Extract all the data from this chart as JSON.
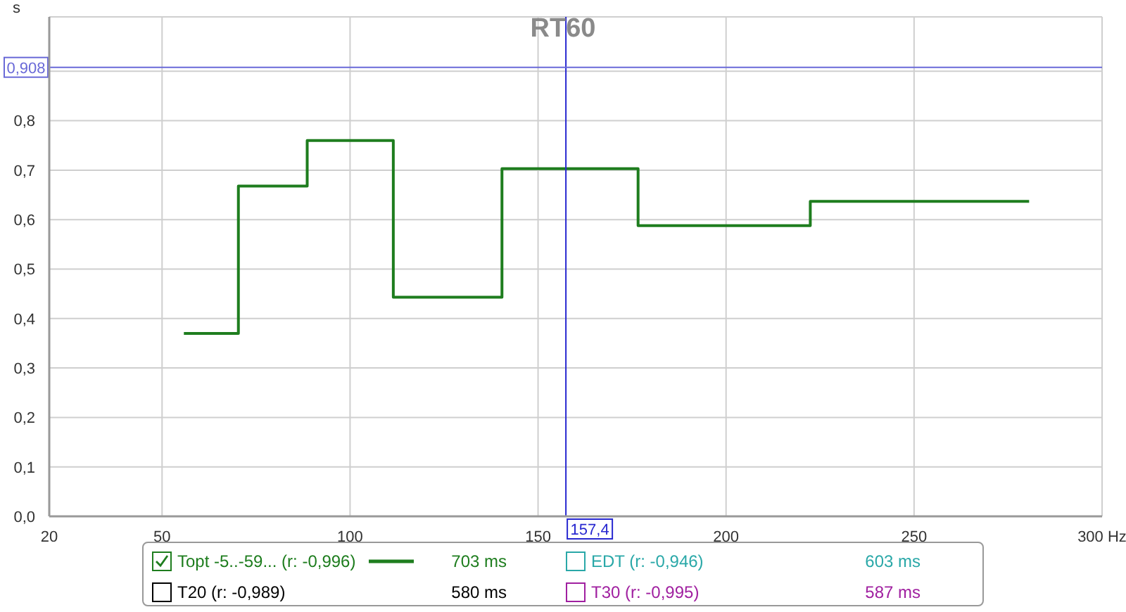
{
  "chart_data": {
    "type": "step",
    "title": "RT60",
    "ylabel": "s",
    "x": [
      55.8,
      70.3,
      88.6,
      111.5,
      140.4,
      176.6,
      222.4,
      280.6
    ],
    "series": [
      {
        "name": "Topt -5..-59... (r: -0,996)",
        "color": "#1e7d1e",
        "values": [
          0.37,
          0.668,
          0.76,
          0.443,
          0.703,
          0.588,
          0.637,
          0.637
        ]
      },
      {
        "name": "EDT (r: -0,946)",
        "color": "#2aa8a8",
        "values": [
          null,
          null,
          null,
          null,
          null,
          null,
          null,
          null
        ]
      },
      {
        "name": "T20 (r: -0,989)",
        "color": "#000000",
        "values": [
          null,
          null,
          null,
          null,
          null,
          null,
          null,
          null
        ]
      },
      {
        "name": "T30 (r: -0,995)",
        "color": "#a020a0",
        "values": [
          null,
          null,
          null,
          null,
          null,
          null,
          null,
          null
        ]
      }
    ],
    "xlim": [
      20,
      300
    ],
    "xticks": [
      20,
      50,
      100,
      150,
      200,
      250,
      {
        "value": 300,
        "label": "300 Hz"
      }
    ],
    "ylim": [
      0,
      1.01
    ],
    "yticks": [
      {
        "value": 0,
        "label": "0,0"
      },
      {
        "value": 0.1,
        "label": "0,1"
      },
      {
        "value": 0.2,
        "label": "0,2"
      },
      {
        "value": 0.3,
        "label": "0,3"
      },
      {
        "value": 0.4,
        "label": "0,4"
      },
      {
        "value": 0.5,
        "label": "0,5"
      },
      {
        "value": 0.6,
        "label": "0,6"
      },
      {
        "value": 0.7,
        "label": "0,7"
      },
      {
        "value": 0.8,
        "label": "0,8"
      },
      {
        "value": 0.9,
        "label": null
      }
    ],
    "grid": true,
    "legend": "bottom",
    "ref_lines": [
      {
        "axis": "x",
        "value": 157.4,
        "label": "157,4",
        "color": "#2828d0"
      },
      {
        "axis": "y",
        "value": 0.908,
        "label": "0,908",
        "color": "#6a6ad8"
      }
    ],
    "annotations": [
      "703 ms",
      "603 ms",
      "580 ms",
      "587 ms"
    ]
  }
}
